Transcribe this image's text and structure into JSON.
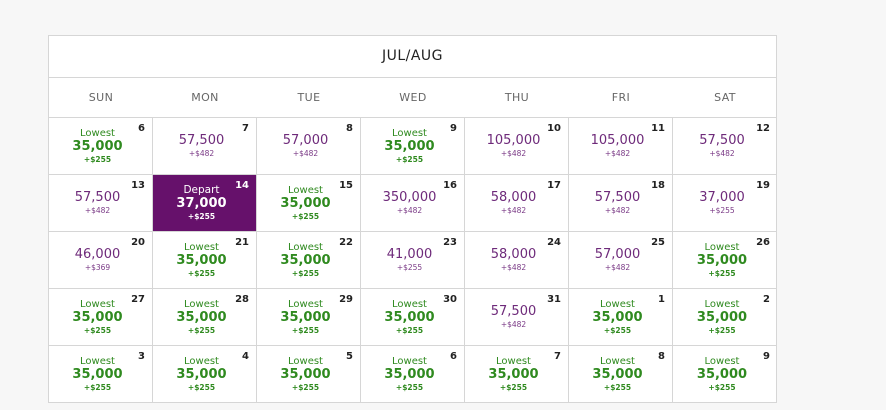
{
  "calendar": {
    "title": "JUL/AUG",
    "days_of_week": [
      "SUN",
      "MON",
      "TUE",
      "WED",
      "THU",
      "FRI",
      "SAT"
    ],
    "colors": {
      "selected_bg": "#66116b",
      "lowest_green": "#2f8a1f",
      "regular_purple": "#6e2a7a"
    },
    "weeks": [
      [
        {
          "day": "6",
          "label": "Lowest",
          "miles": "35,000",
          "fee": "+$255",
          "type": "lowest"
        },
        {
          "day": "7",
          "label": "",
          "miles": "57,500",
          "fee": "+$482",
          "type": "regular"
        },
        {
          "day": "8",
          "label": "",
          "miles": "57,000",
          "fee": "+$482",
          "type": "regular"
        },
        {
          "day": "9",
          "label": "Lowest",
          "miles": "35,000",
          "fee": "+$255",
          "type": "lowest"
        },
        {
          "day": "10",
          "label": "",
          "miles": "105,000",
          "fee": "+$482",
          "type": "regular"
        },
        {
          "day": "11",
          "label": "",
          "miles": "105,000",
          "fee": "+$482",
          "type": "regular"
        },
        {
          "day": "12",
          "label": "",
          "miles": "57,500",
          "fee": "+$482",
          "type": "regular"
        }
      ],
      [
        {
          "day": "13",
          "label": "",
          "miles": "57,500",
          "fee": "+$482",
          "type": "regular"
        },
        {
          "day": "14",
          "label": "Depart",
          "miles": "37,000",
          "fee": "+$255",
          "type": "selected"
        },
        {
          "day": "15",
          "label": "Lowest",
          "miles": "35,000",
          "fee": "+$255",
          "type": "lowest"
        },
        {
          "day": "16",
          "label": "",
          "miles": "350,000",
          "fee": "+$482",
          "type": "regular"
        },
        {
          "day": "17",
          "label": "",
          "miles": "58,000",
          "fee": "+$482",
          "type": "regular"
        },
        {
          "day": "18",
          "label": "",
          "miles": "57,500",
          "fee": "+$482",
          "type": "regular"
        },
        {
          "day": "19",
          "label": "",
          "miles": "37,000",
          "fee": "+$255",
          "type": "regular"
        }
      ],
      [
        {
          "day": "20",
          "label": "",
          "miles": "46,000",
          "fee": "+$369",
          "type": "regular"
        },
        {
          "day": "21",
          "label": "Lowest",
          "miles": "35,000",
          "fee": "+$255",
          "type": "lowest"
        },
        {
          "day": "22",
          "label": "Lowest",
          "miles": "35,000",
          "fee": "+$255",
          "type": "lowest"
        },
        {
          "day": "23",
          "label": "",
          "miles": "41,000",
          "fee": "+$255",
          "type": "regular"
        },
        {
          "day": "24",
          "label": "",
          "miles": "58,000",
          "fee": "+$482",
          "type": "regular"
        },
        {
          "day": "25",
          "label": "",
          "miles": "57,000",
          "fee": "+$482",
          "type": "regular"
        },
        {
          "day": "26",
          "label": "Lowest",
          "miles": "35,000",
          "fee": "+$255",
          "type": "lowest"
        }
      ],
      [
        {
          "day": "27",
          "label": "Lowest",
          "miles": "35,000",
          "fee": "+$255",
          "type": "lowest"
        },
        {
          "day": "28",
          "label": "Lowest",
          "miles": "35,000",
          "fee": "+$255",
          "type": "lowest"
        },
        {
          "day": "29",
          "label": "Lowest",
          "miles": "35,000",
          "fee": "+$255",
          "type": "lowest"
        },
        {
          "day": "30",
          "label": "Lowest",
          "miles": "35,000",
          "fee": "+$255",
          "type": "lowest"
        },
        {
          "day": "31",
          "label": "",
          "miles": "57,500",
          "fee": "+$482",
          "type": "regular"
        },
        {
          "day": "1",
          "label": "Lowest",
          "miles": "35,000",
          "fee": "+$255",
          "type": "lowest"
        },
        {
          "day": "2",
          "label": "Lowest",
          "miles": "35,000",
          "fee": "+$255",
          "type": "lowest"
        }
      ],
      [
        {
          "day": "3",
          "label": "Lowest",
          "miles": "35,000",
          "fee": "+$255",
          "type": "lowest"
        },
        {
          "day": "4",
          "label": "Lowest",
          "miles": "35,000",
          "fee": "+$255",
          "type": "lowest"
        },
        {
          "day": "5",
          "label": "Lowest",
          "miles": "35,000",
          "fee": "+$255",
          "type": "lowest"
        },
        {
          "day": "6",
          "label": "Lowest",
          "miles": "35,000",
          "fee": "+$255",
          "type": "lowest"
        },
        {
          "day": "7",
          "label": "Lowest",
          "miles": "35,000",
          "fee": "+$255",
          "type": "lowest"
        },
        {
          "day": "8",
          "label": "Lowest",
          "miles": "35,000",
          "fee": "+$255",
          "type": "lowest"
        },
        {
          "day": "9",
          "label": "Lowest",
          "miles": "35,000",
          "fee": "+$255",
          "type": "lowest"
        }
      ]
    ]
  },
  "footnote": {
    "text": ""
  }
}
